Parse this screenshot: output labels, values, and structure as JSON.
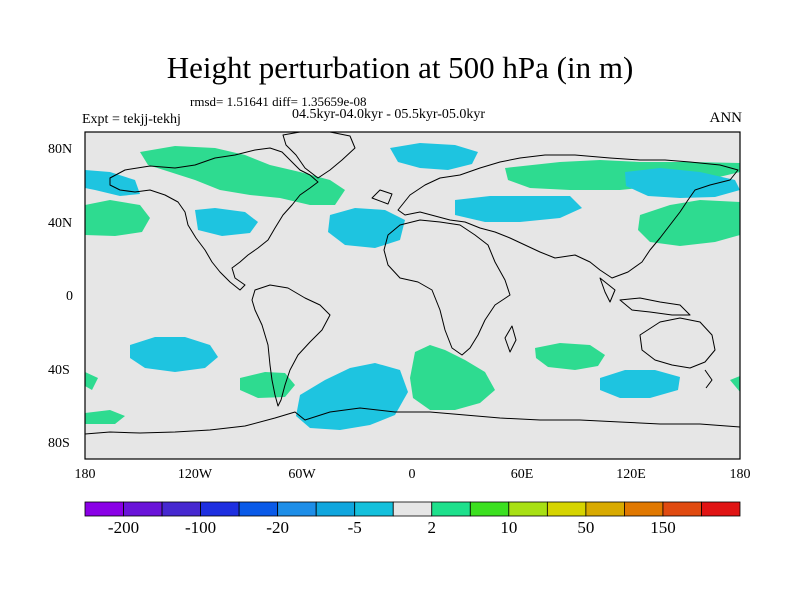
{
  "title": "Height perturbation at 500 hPa (in m)",
  "stats": "rmsd= 1.51641 diff= 1.35659e-08",
  "period": "04.5kyr-04.0kyr - 05.5kyr-05.0kyr",
  "experiment": "Expt = tekjj-tekhj",
  "season": "ANN",
  "lat_ticks": [
    "80N",
    "40N",
    "0",
    "40S",
    "80S"
  ],
  "lon_ticks": [
    "180",
    "120W",
    "60W",
    "0",
    "60E",
    "120E",
    "180"
  ],
  "colorbar": {
    "colors": [
      "#8a00e6",
      "#6a14d9",
      "#4628d0",
      "#1e2fe0",
      "#0a5ae8",
      "#1e8ee8",
      "#10a6de",
      "#14c0dc",
      "#e6e6e6",
      "#1ee08c",
      "#3ce020",
      "#a8e014",
      "#d6d400",
      "#d8aa00",
      "#e07800",
      "#e04a10",
      "#e01414"
    ],
    "labels": [
      "-200",
      "-100",
      "-20",
      "-5",
      "2",
      "10",
      "50",
      "150"
    ]
  },
  "colors": {
    "positive": "#2edb90",
    "negative": "#1ec4e0",
    "background": "#e6e6e6"
  }
}
